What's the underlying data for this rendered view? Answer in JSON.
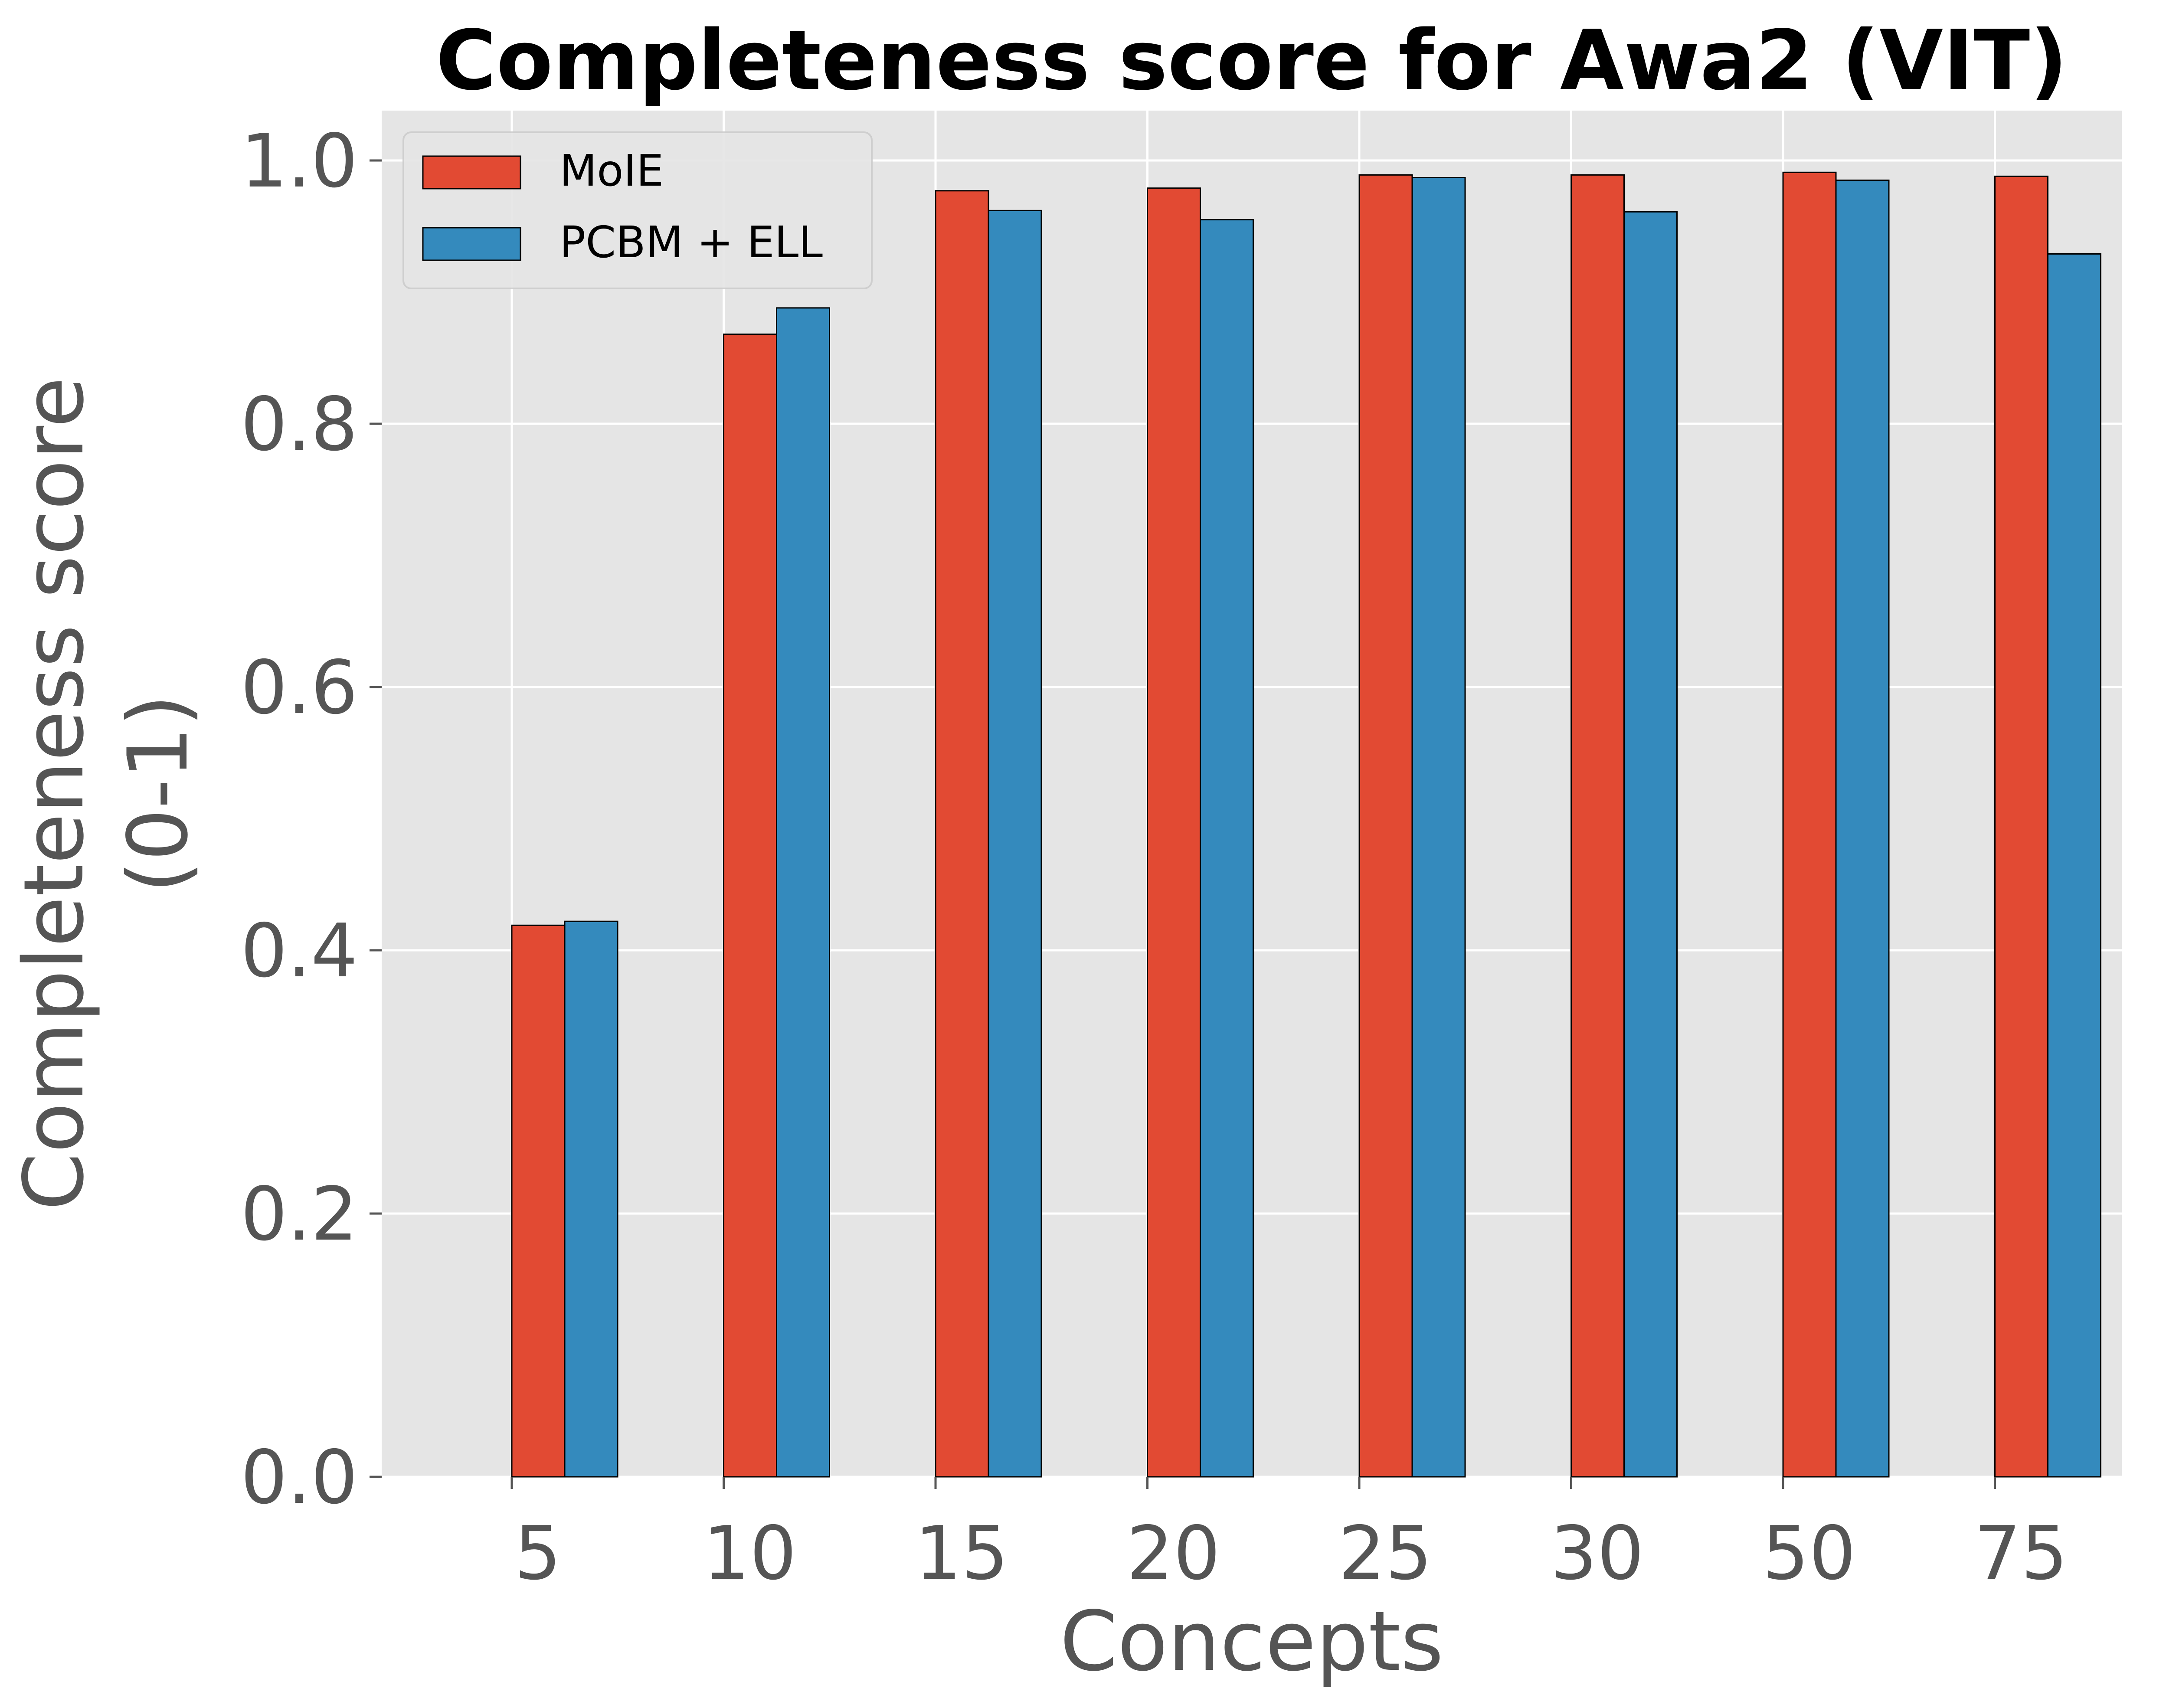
{
  "chart_data": {
    "type": "bar",
    "title": "Completeness score for Awa2 (VIT)",
    "xlabel": "Concepts",
    "ylabel_line1": "Completeness score",
    "ylabel_line2": "(0-1)",
    "categories": [
      "5",
      "10",
      "15",
      "20",
      "25",
      "30",
      "50",
      "75"
    ],
    "series": [
      {
        "name": "MoIE",
        "color": "#E24A33",
        "values": [
          0.419,
          0.868,
          0.977,
          0.979,
          0.989,
          0.989,
          0.991,
          0.988
        ]
      },
      {
        "name": "PCBM + ELL",
        "color": "#348ABD",
        "values": [
          0.422,
          0.888,
          0.962,
          0.955,
          0.987,
          0.961,
          0.985,
          0.929
        ]
      }
    ],
    "ylim": [
      0,
      1.0
    ],
    "yticks": [
      "0.0",
      "0.2",
      "0.4",
      "0.6",
      "0.8",
      "1.0"
    ],
    "grid": true,
    "legend_position": "top-left",
    "background_color": "#E5E5E5"
  }
}
